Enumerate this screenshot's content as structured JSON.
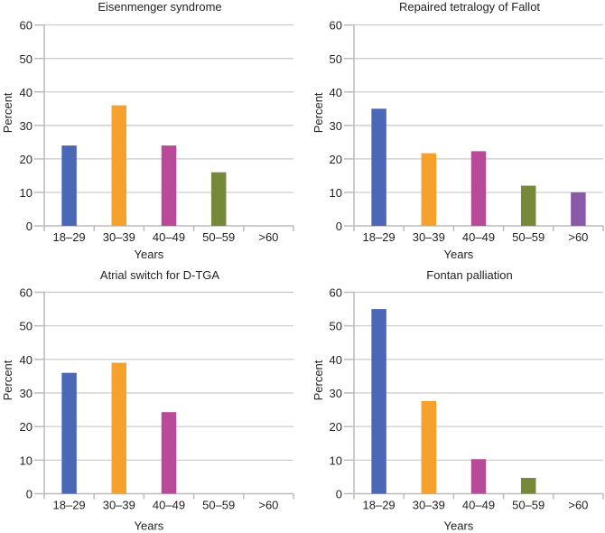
{
  "chart_data": [
    {
      "type": "bar",
      "title": "Eisenmenger syndrome",
      "xlabel": "Years",
      "ylabel": "Percent",
      "ylim": [
        0,
        60
      ],
      "yticks": [
        "0",
        "10",
        "20",
        "30",
        "40",
        "50",
        "60"
      ],
      "grid": true,
      "categories": [
        "18–29",
        "30–39",
        "40–49",
        "50–59",
        ">60"
      ],
      "values": [
        24,
        36,
        24,
        16,
        0
      ],
      "colors": [
        "#4a68b7",
        "#f6a12c",
        "#b94a99",
        "#76893b",
        "#8a5aaa"
      ]
    },
    {
      "type": "bar",
      "title": "Repaired tetralogy of Fallot",
      "xlabel": "Years",
      "ylabel": "Percent",
      "ylim": [
        0,
        60
      ],
      "yticks": [
        "0",
        "10",
        "20",
        "30",
        "40",
        "50",
        "60"
      ],
      "grid": true,
      "categories": [
        "18–29",
        "30–39",
        "40–49",
        "50–59",
        ">60"
      ],
      "values": [
        35,
        21.7,
        22.3,
        12,
        10
      ],
      "colors": [
        "#4a68b7",
        "#f6a12c",
        "#b94a99",
        "#76893b",
        "#8a5aaa"
      ]
    },
    {
      "type": "bar",
      "title": "Atrial switch for D-TGA",
      "xlabel": "Years",
      "ylabel": "Percent",
      "ylim": [
        0,
        60
      ],
      "yticks": [
        "0",
        "10",
        "20",
        "30",
        "40",
        "50",
        "60"
      ],
      "grid": true,
      "categories": [
        "18–29",
        "30–39",
        "40–49",
        "50–59",
        ">60"
      ],
      "values": [
        36,
        39,
        24.3,
        0,
        0
      ],
      "colors": [
        "#4a68b7",
        "#f6a12c",
        "#b94a99",
        "#76893b",
        "#8a5aaa"
      ]
    },
    {
      "type": "bar",
      "title": "Fontan palliation",
      "xlabel": "Years",
      "ylabel": "Percent",
      "ylim": [
        0,
        60
      ],
      "yticks": [
        "0",
        "10",
        "20",
        "30",
        "40",
        "50",
        "60"
      ],
      "grid": true,
      "categories": [
        "18–29",
        "30–39",
        "40–49",
        "50–59",
        ">60"
      ],
      "values": [
        55,
        27.6,
        10.3,
        4.7,
        0
      ],
      "colors": [
        "#4a68b7",
        "#f6a12c",
        "#b94a99",
        "#76893b",
        "#8a5aaa"
      ]
    }
  ]
}
